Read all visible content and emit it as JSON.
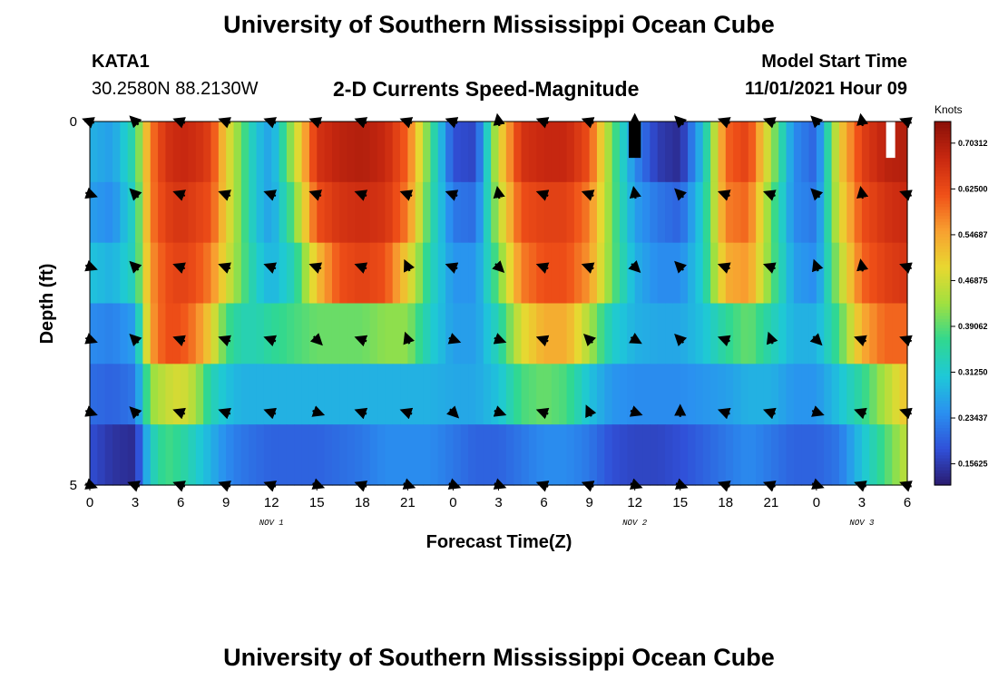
{
  "title": "University of Southern Mississippi Ocean Cube",
  "title_bottom": "University of Southern Mississippi Ocean Cube",
  "station": {
    "id": "KATA1",
    "coords": "30.2580N  88.2130W"
  },
  "plot_title": "2-D Currents Speed-Magnitude",
  "model": {
    "label": "Model Start Time",
    "value": "11/01/2021 Hour 09"
  },
  "chart_data": {
    "type": "heatmap",
    "title": "2-D Currents Speed-Magnitude",
    "xlabel": "Forecast Time(Z)",
    "ylabel": "Depth (ft)",
    "x_tick_labels": [
      "0",
      "3",
      "6",
      "9",
      "12",
      "15",
      "18",
      "21",
      "0",
      "3",
      "6",
      "9",
      "12",
      "15",
      "18",
      "21",
      "0",
      "3",
      "6"
    ],
    "x_range_hours": [
      0,
      54
    ],
    "y_tick_labels": [
      "0",
      "5"
    ],
    "y_range_ft": [
      0,
      5
    ],
    "day_labels": [
      {
        "text": "NOV 1",
        "hour": 12
      },
      {
        "text": "NOV 2",
        "hour": 36
      },
      {
        "text": "NOV 3",
        "hour": 51
      }
    ],
    "colorbar": {
      "units": "Knots",
      "range": [
        0.12,
        0.74
      ],
      "tick_labels": [
        "0.70312",
        "0.62500",
        "0.54687",
        "0.46875",
        "0.39062",
        "0.31250",
        "0.23437",
        "0.15625"
      ],
      "tick_values": [
        0.70312,
        0.625,
        0.54687,
        0.46875,
        0.39062,
        0.3125,
        0.23437,
        0.15625
      ],
      "colors": [
        "#2a1a6e",
        "#3050d8",
        "#2a90f0",
        "#1ec8d8",
        "#30d890",
        "#a0e040",
        "#e8d830",
        "#f8a030",
        "#f05018",
        "#c82810",
        "#8a1008"
      ]
    },
    "depth_rows_ft": [
      0,
      1,
      2,
      3,
      4,
      5
    ],
    "time_nodes_hours": [
      0,
      1.5,
      3,
      4,
      5,
      6,
      7,
      8,
      9,
      10,
      11,
      12,
      13.5,
      15,
      16.5,
      18,
      19.5,
      21,
      22.5,
      24,
      25.5,
      27,
      28.5,
      30,
      31.5,
      33,
      34.5,
      36,
      37.5,
      39,
      40.5,
      42,
      43.5,
      45,
      46.5,
      48,
      49.5,
      51,
      52.5,
      54
    ],
    "speed_knots": [
      [
        0.28,
        0.26,
        0.36,
        0.58,
        0.66,
        0.68,
        0.67,
        0.64,
        0.5,
        0.4,
        0.3,
        0.26,
        0.45,
        0.66,
        0.69,
        0.7,
        0.68,
        0.6,
        0.38,
        0.18,
        0.17,
        0.48,
        0.66,
        0.68,
        0.68,
        0.62,
        0.4,
        0.24,
        0.16,
        0.14,
        0.3,
        0.6,
        0.64,
        0.44,
        0.24,
        0.2,
        0.5,
        0.64,
        0.69,
        0.7
      ],
      [
        0.26,
        0.24,
        0.34,
        0.58,
        0.64,
        0.66,
        0.64,
        0.62,
        0.5,
        0.4,
        0.3,
        0.26,
        0.4,
        0.62,
        0.66,
        0.67,
        0.66,
        0.58,
        0.36,
        0.22,
        0.21,
        0.45,
        0.62,
        0.64,
        0.64,
        0.58,
        0.4,
        0.26,
        0.22,
        0.2,
        0.32,
        0.58,
        0.6,
        0.4,
        0.24,
        0.22,
        0.48,
        0.62,
        0.66,
        0.68
      ],
      [
        0.3,
        0.28,
        0.34,
        0.56,
        0.62,
        0.64,
        0.62,
        0.58,
        0.48,
        0.4,
        0.32,
        0.28,
        0.34,
        0.52,
        0.62,
        0.64,
        0.62,
        0.5,
        0.34,
        0.25,
        0.25,
        0.4,
        0.58,
        0.62,
        0.62,
        0.56,
        0.4,
        0.28,
        0.24,
        0.24,
        0.32,
        0.54,
        0.56,
        0.4,
        0.26,
        0.24,
        0.44,
        0.6,
        0.64,
        0.66
      ],
      [
        0.24,
        0.23,
        0.26,
        0.55,
        0.62,
        0.62,
        0.58,
        0.5,
        0.38,
        0.34,
        0.34,
        0.36,
        0.38,
        0.4,
        0.4,
        0.4,
        0.42,
        0.42,
        0.32,
        0.26,
        0.26,
        0.34,
        0.48,
        0.54,
        0.54,
        0.44,
        0.32,
        0.28,
        0.27,
        0.27,
        0.3,
        0.36,
        0.4,
        0.34,
        0.28,
        0.28,
        0.38,
        0.54,
        0.6,
        0.6
      ],
      [
        0.21,
        0.2,
        0.22,
        0.42,
        0.46,
        0.48,
        0.44,
        0.34,
        0.3,
        0.28,
        0.28,
        0.28,
        0.28,
        0.28,
        0.28,
        0.28,
        0.28,
        0.28,
        0.28,
        0.27,
        0.27,
        0.3,
        0.38,
        0.4,
        0.38,
        0.3,
        0.25,
        0.24,
        0.24,
        0.24,
        0.25,
        0.26,
        0.28,
        0.28,
        0.25,
        0.25,
        0.3,
        0.36,
        0.44,
        0.52
      ],
      [
        0.18,
        0.15,
        0.14,
        0.32,
        0.38,
        0.36,
        0.32,
        0.28,
        0.24,
        0.22,
        0.21,
        0.2,
        0.2,
        0.2,
        0.21,
        0.22,
        0.24,
        0.24,
        0.24,
        0.22,
        0.2,
        0.2,
        0.22,
        0.24,
        0.24,
        0.22,
        0.18,
        0.17,
        0.17,
        0.18,
        0.2,
        0.22,
        0.24,
        0.22,
        0.2,
        0.2,
        0.22,
        0.3,
        0.38,
        0.46
      ]
    ],
    "vector_columns_hours": [
      0,
      3,
      6,
      9,
      12,
      15,
      18,
      21,
      24,
      27,
      30,
      33,
      36,
      39,
      42,
      45,
      48,
      51,
      54
    ],
    "vector_direction_deg": [
      [
        200,
        225,
        200,
        200,
        200,
        200,
        200,
        200,
        200,
        260,
        200,
        200,
        270,
        225,
        200,
        200,
        225,
        260,
        200
      ],
      [
        20,
        225,
        200,
        200,
        200,
        200,
        200,
        200,
        200,
        260,
        200,
        200,
        260,
        225,
        200,
        200,
        225,
        260,
        200
      ],
      [
        20,
        225,
        200,
        200,
        200,
        200,
        200,
        245,
        200,
        45,
        200,
        200,
        45,
        225,
        200,
        200,
        250,
        260,
        200
      ],
      [
        20,
        225,
        200,
        200,
        200,
        45,
        200,
        250,
        20,
        20,
        200,
        225,
        30,
        225,
        200,
        250,
        45,
        200,
        200
      ],
      [
        20,
        225,
        200,
        200,
        200,
        20,
        200,
        200,
        45,
        20,
        200,
        245,
        20,
        270,
        200,
        200,
        20,
        200,
        200
      ],
      [
        20,
        200,
        200,
        200,
        200,
        20,
        200,
        20,
        20,
        20,
        200,
        200,
        20,
        20,
        200,
        200,
        20,
        200,
        200
      ]
    ],
    "annotations": [
      {
        "type": "black_block",
        "hours": [
          35.6,
          36.4
        ],
        "depth_ft": [
          0,
          0.5
        ]
      },
      {
        "type": "white_block",
        "hours": [
          52.6,
          53.2
        ],
        "depth_ft": [
          0,
          0.5
        ]
      }
    ]
  }
}
